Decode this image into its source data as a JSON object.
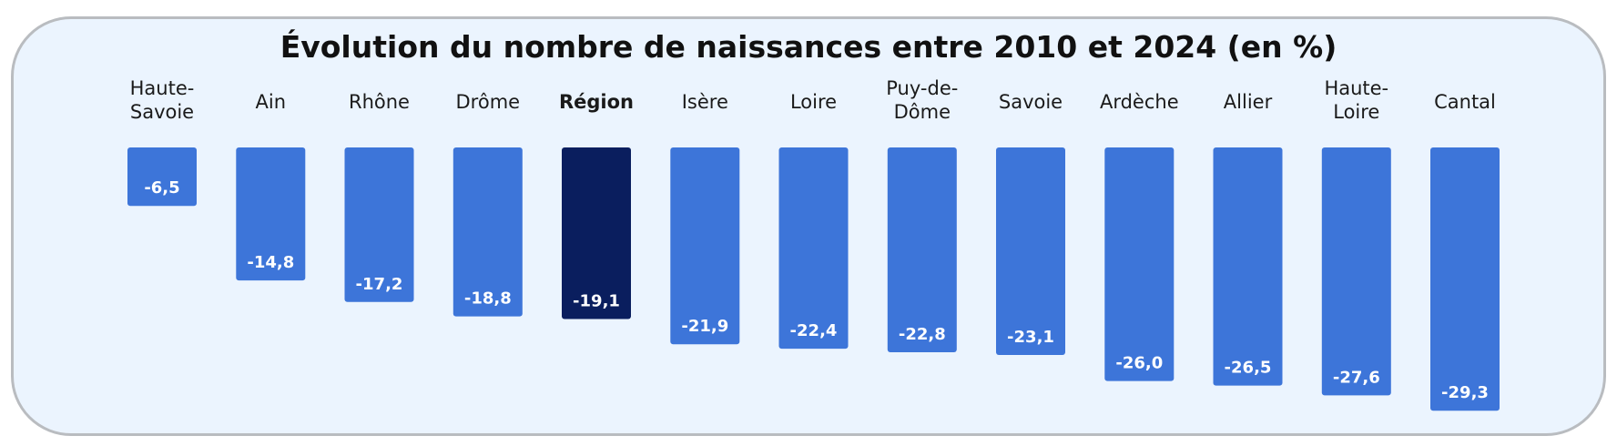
{
  "chart_data": {
    "type": "bar",
    "title": "Évolution du nombre de naissances entre 2010 et 2024 (en %)",
    "xlabel": "",
    "ylabel": "",
    "ylim": [
      -29.3,
      0
    ],
    "orientation": "vertical-down",
    "categories": [
      "Haute-Savoie",
      "Ain",
      "Rhône",
      "Drôme",
      "Région",
      "Isère",
      "Loire",
      "Puy-de-Dôme",
      "Savoie",
      "Ardèche",
      "Allier",
      "Haute-Loire",
      "Cantal"
    ],
    "category_label_lines": [
      [
        "Haute-",
        "Savoie"
      ],
      [
        "Ain"
      ],
      [
        "Rhône"
      ],
      [
        "Drôme"
      ],
      [
        "Région"
      ],
      [
        "Isère"
      ],
      [
        "Loire"
      ],
      [
        "Puy-de-",
        "Dôme"
      ],
      [
        "Savoie"
      ],
      [
        "Ardèche"
      ],
      [
        "Allier"
      ],
      [
        "Haute-",
        "Loire"
      ],
      [
        "Cantal"
      ]
    ],
    "values": [
      -6.5,
      -14.8,
      -17.2,
      -18.8,
      -19.1,
      -21.9,
      -22.4,
      -22.8,
      -23.1,
      -26.0,
      -26.5,
      -27.6,
      -29.3
    ],
    "data_labels": [
      "-6,5",
      "-14,8",
      "-17,2",
      "-18,8",
      "-19,1",
      "-21,9",
      "-22,4",
      "-22,8",
      "-23,1",
      "-26,0",
      "-26,5",
      "-27,6",
      "-29,3"
    ],
    "highlighted_category": "Région",
    "colors": {
      "bar": "#3d75d9",
      "bar_highlight": "#0a1e5e",
      "panel_background": "#ebf4fe",
      "panel_border": "#b9bcc0",
      "value_text": "#ffffff",
      "label_text": "#1a1a1a"
    },
    "grid": false,
    "legend": "none"
  }
}
